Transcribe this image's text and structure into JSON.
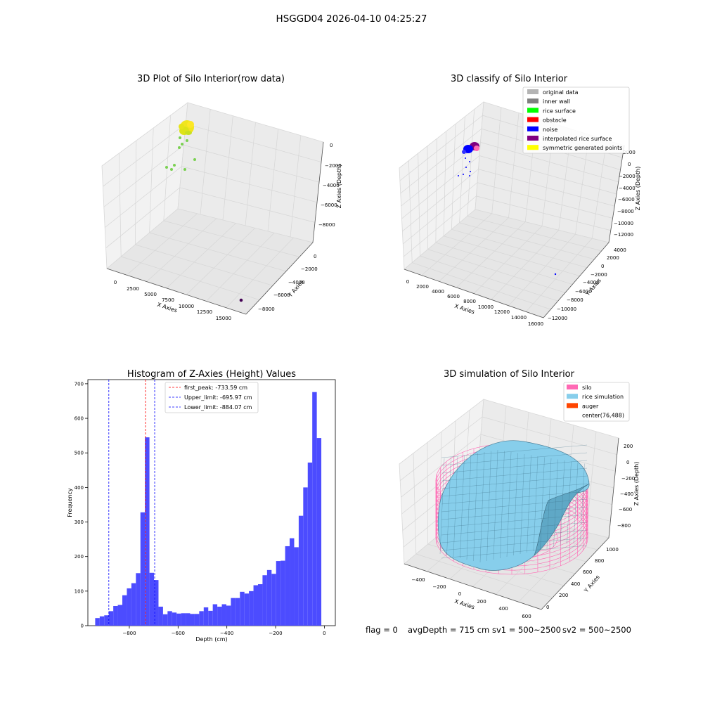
{
  "figure": {
    "suptitle": "HSGGD04 2026-04-10 04:25:27",
    "footer": {
      "flag": "flag = 0",
      "avg_depth": "avgDepth = 715 cm",
      "sv1": "sv1 = 500~2500",
      "sv2": "sv2 = 500~2500"
    }
  },
  "chart_data": [
    {
      "type": "scatter",
      "title": "3D Plot of Silo Interior(row data)",
      "xlabel": "X Axies",
      "ylabel": "Y Axies",
      "zlabel": "Z Axies (Depth)",
      "x_ticks": [
        "0",
        "2500",
        "5000",
        "7500",
        "10000",
        "12500",
        "15000"
      ],
      "y_ticks": [
        "0",
        "−2000",
        "−4000",
        "−6000",
        "−8000"
      ],
      "z_ticks": [
        "0",
        "−2000",
        "−4000",
        "−6000",
        "−8000"
      ],
      "colors": {
        "cluster": "#f1e51d",
        "scatter": "#7ad151",
        "outlier": "#440154"
      }
    },
    {
      "type": "scatter",
      "title": "3D classify of Silo Interior",
      "xlabel": "X Axies",
      "ylabel": "Y Axies",
      "zlabel": "Z Axies (Depth)",
      "x_ticks": [
        "0",
        "2000",
        "4000",
        "6000",
        "8000",
        "10000",
        "12000",
        "14000",
        "16000"
      ],
      "y_ticks": [
        "4000",
        "2000",
        "0",
        "−2000",
        "−4000",
        "−6000",
        "−8000",
        "−10000",
        "−12000"
      ],
      "z_ticks": [
        "2000",
        "0",
        "−2000",
        "−4000",
        "−6000",
        "−8000",
        "−10000",
        "−12000"
      ],
      "legend": [
        {
          "label": "original data",
          "color": "#b4b4b4"
        },
        {
          "label": "inner wall",
          "color": "#808080"
        },
        {
          "label": "rice surface",
          "color": "#00ff00"
        },
        {
          "label": "obstacle",
          "color": "#ff0000"
        },
        {
          "label": "noise",
          "color": "#0000ff"
        },
        {
          "label": "interpolated rice surface",
          "color": "#800080"
        },
        {
          "label": "symmetric generated points",
          "color": "#ffff00"
        }
      ]
    },
    {
      "type": "bar",
      "title": "Histogram of Z-Axies (Height) Values",
      "xlabel": "Depth (cm)",
      "ylabel": "Frequency",
      "xlim": [
        -970,
        45
      ],
      "ylim": [
        0,
        712
      ],
      "x_ticks": [
        -800,
        -600,
        -400,
        -200,
        0
      ],
      "x_tick_labels": [
        "−800",
        "−600",
        "−400",
        "−200",
        "0"
      ],
      "y_ticks": [
        0,
        100,
        200,
        300,
        400,
        500,
        600,
        700
      ],
      "bin_width": 18.55,
      "bin_start": -940,
      "values": [
        22,
        27,
        30,
        42,
        57,
        60,
        88,
        108,
        123,
        152,
        328,
        545,
        153,
        132,
        55,
        33,
        42,
        38,
        35,
        36,
        36,
        34,
        34,
        42,
        53,
        43,
        62,
        55,
        62,
        58,
        80,
        80,
        98,
        93,
        100,
        117,
        120,
        146,
        161,
        150,
        187,
        188,
        230,
        253,
        227,
        318,
        400,
        472,
        676,
        543
      ],
      "bar_color": "#4c4cff",
      "lines": [
        {
          "label": "first_peak: -733.59 cm",
          "x": -733.59,
          "color": "#ff0000"
        },
        {
          "label": "Upper_limit: -695.97 cm",
          "x": -695.97,
          "color": "#0000ff"
        },
        {
          "label": "Lower_limit: -884.07 cm",
          "x": -884.07,
          "color": "#0000ff"
        }
      ]
    },
    {
      "type": "area",
      "title": "3D simulation of Silo Interior",
      "xlabel": "X Axies",
      "ylabel": "Y Axies",
      "zlabel": "Z Axies (Depth)",
      "x_ticks": [
        "−400",
        "−200",
        "0",
        "200",
        "400",
        "600"
      ],
      "y_ticks": [
        "0",
        "200",
        "400",
        "600",
        "800",
        "1000"
      ],
      "z_ticks": [
        "200",
        "0",
        "−200",
        "−400",
        "−600",
        "−800"
      ],
      "legend": [
        {
          "label": "silo",
          "color": "#ff69b4"
        },
        {
          "label": "rice simulation",
          "color": "#87ceeb"
        },
        {
          "label": "auger",
          "color": "#ff4500"
        },
        {
          "label": "center(76,488)",
          "color": ""
        }
      ]
    }
  ]
}
